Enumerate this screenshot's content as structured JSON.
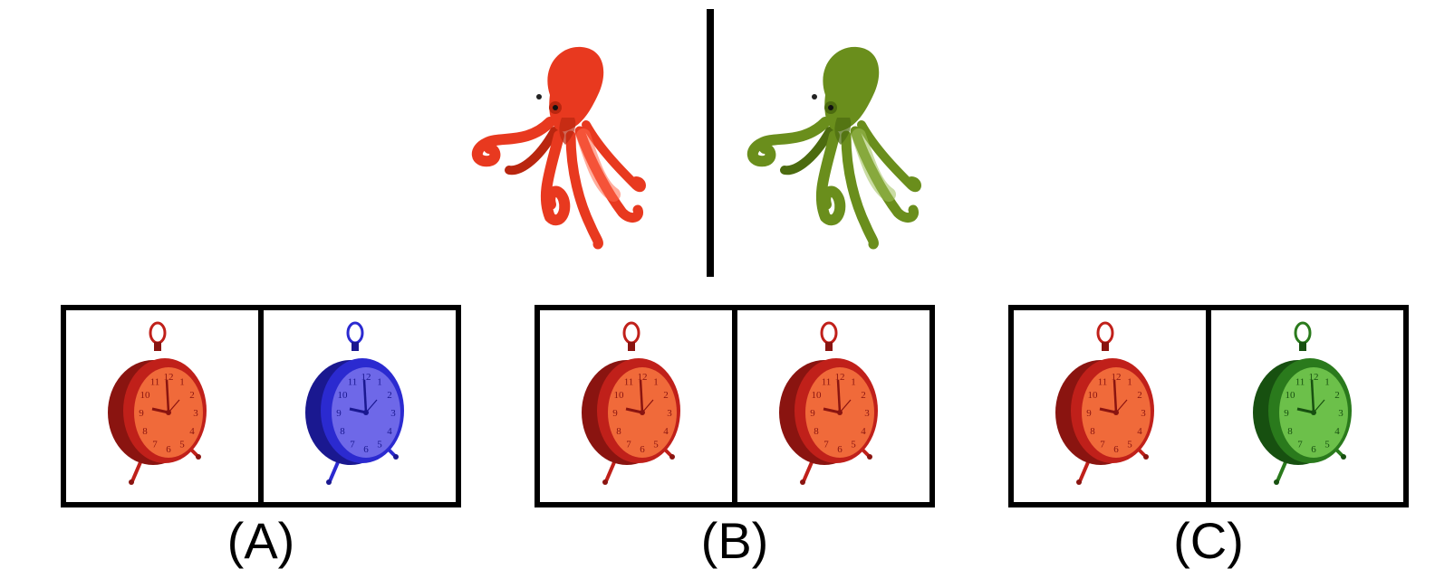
{
  "example": {
    "left": {
      "icon": "octopus-icon",
      "color": "#e8391f",
      "dark": "#b9260f",
      "light": "#ff6a4d"
    },
    "right": {
      "icon": "octopus-icon",
      "color": "#6a8e1c",
      "dark": "#4c6b0f",
      "light": "#9ec05a"
    }
  },
  "options": [
    {
      "label": "(A)",
      "left": {
        "icon": "alarm-clock-icon",
        "body": "#c0201a",
        "face": "#f06a3a",
        "dark": "#8a1410"
      },
      "right": {
        "icon": "alarm-clock-icon",
        "body": "#2b2ad0",
        "face": "#6e68e8",
        "dark": "#1a1890"
      }
    },
    {
      "label": "(B)",
      "left": {
        "icon": "alarm-clock-icon",
        "body": "#c0201a",
        "face": "#f06a3a",
        "dark": "#8a1410"
      },
      "right": {
        "icon": "alarm-clock-icon",
        "body": "#c0201a",
        "face": "#f06a3a",
        "dark": "#8a1410"
      }
    },
    {
      "label": "(C)",
      "left": {
        "icon": "alarm-clock-icon",
        "body": "#c0201a",
        "face": "#f06a3a",
        "dark": "#8a1410"
      },
      "right": {
        "icon": "alarm-clock-icon",
        "body": "#2a7a1c",
        "face": "#6cc04a",
        "dark": "#175010"
      }
    }
  ]
}
